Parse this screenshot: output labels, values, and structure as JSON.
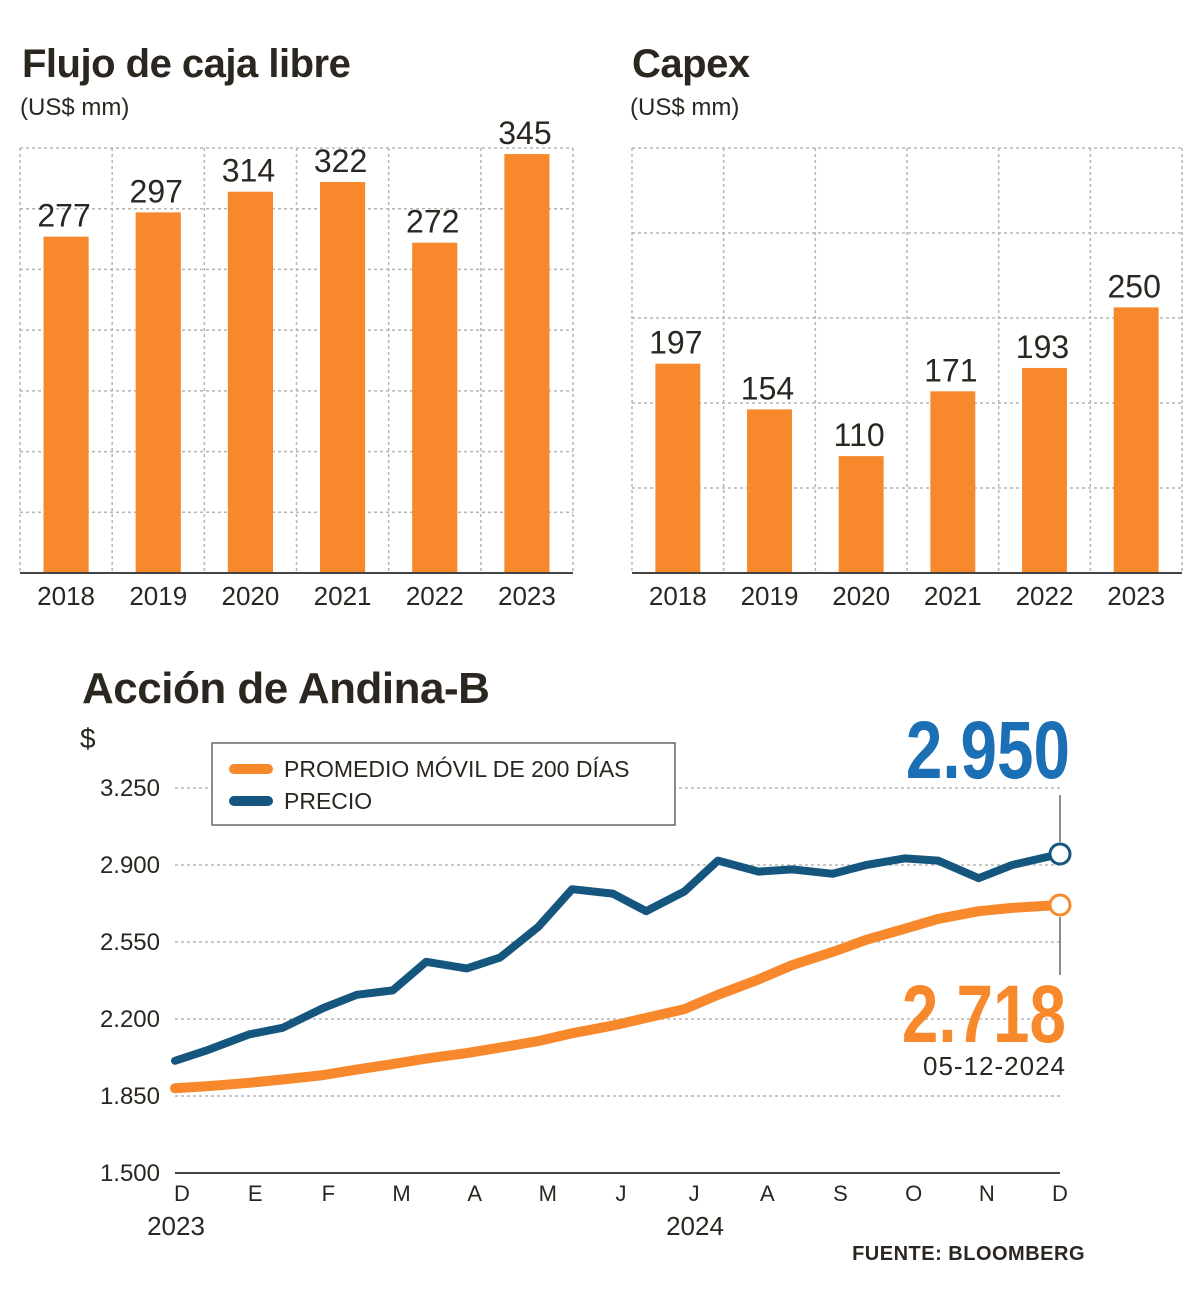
{
  "chart_data": [
    {
      "type": "bar",
      "title": "Flujo de caja libre",
      "subtitle": "(US$ mm)",
      "categories": [
        "2018",
        "2019",
        "2020",
        "2021",
        "2022",
        "2023"
      ],
      "values": [
        277,
        297,
        314,
        322,
        272,
        345
      ],
      "value_labels": [
        "277",
        "297",
        "314",
        "322",
        "272",
        "345"
      ],
      "ylim": [
        0,
        350
      ],
      "grid": true,
      "color": "#f7892c"
    },
    {
      "type": "bar",
      "title": "Capex",
      "subtitle": "(US$ mm)",
      "categories": [
        "2018",
        "2019",
        "2020",
        "2021",
        "2022",
        "2023"
      ],
      "values": [
        197,
        154,
        110,
        171,
        193,
        250
      ],
      "value_labels": [
        "197",
        "154",
        "110",
        "171",
        "193",
        "250"
      ],
      "ylim": [
        0,
        400
      ],
      "grid": true,
      "color": "#f7892c"
    },
    {
      "type": "line",
      "title": "Acción de Andina-B",
      "ylabel": "$",
      "ylim": [
        1500,
        3250
      ],
      "yticks": [
        1500,
        1850,
        2200,
        2550,
        2900,
        3250
      ],
      "ytick_labels": [
        "1.500",
        "1.850",
        "2.200",
        "2.550",
        "2.900",
        "3.250"
      ],
      "x_month_labels": [
        "D",
        "E",
        "F",
        "M",
        "A",
        "M",
        "J",
        "J",
        "A",
        "S",
        "O",
        "N",
        "D"
      ],
      "x_year_labels": [
        "2023",
        "2024"
      ],
      "x": [
        "2023-12-01",
        "2023-12-15",
        "2024-01-01",
        "2024-01-15",
        "2024-02-01",
        "2024-02-15",
        "2024-03-01",
        "2024-03-15",
        "2024-04-01",
        "2024-04-15",
        "2024-05-01",
        "2024-05-15",
        "2024-06-01",
        "2024-06-15",
        "2024-07-01",
        "2024-07-15",
        "2024-08-01",
        "2024-08-15",
        "2024-09-01",
        "2024-09-15",
        "2024-10-01",
        "2024-10-15",
        "2024-11-01",
        "2024-11-15",
        "2024-12-05"
      ],
      "series": [
        {
          "name": "PROMEDIO MÓVIL DE 200 DÍAS",
          "color": "#f7892c",
          "values": [
            1885,
            1895,
            1910,
            1925,
            1945,
            1970,
            1995,
            2020,
            2045,
            2070,
            2100,
            2135,
            2170,
            2205,
            2245,
            2310,
            2380,
            2445,
            2505,
            2560,
            2610,
            2655,
            2690,
            2705,
            2718
          ]
        },
        {
          "name": "PRECIO",
          "color": "#15567e",
          "values": [
            2010,
            2060,
            2130,
            2160,
            2250,
            2310,
            2330,
            2460,
            2430,
            2480,
            2620,
            2790,
            2770,
            2690,
            2780,
            2920,
            2870,
            2880,
            2860,
            2900,
            2930,
            2920,
            2840,
            2900,
            2950
          ]
        }
      ],
      "legend_position": "top-left",
      "end_date_label": "05-12-2024",
      "end_labels": {
        "PRECIO": "2.950",
        "PROMEDIO MÓVIL DE 200 DÍAS": "2.718"
      }
    }
  ],
  "source": "FUENTE: BLOOMBERG"
}
